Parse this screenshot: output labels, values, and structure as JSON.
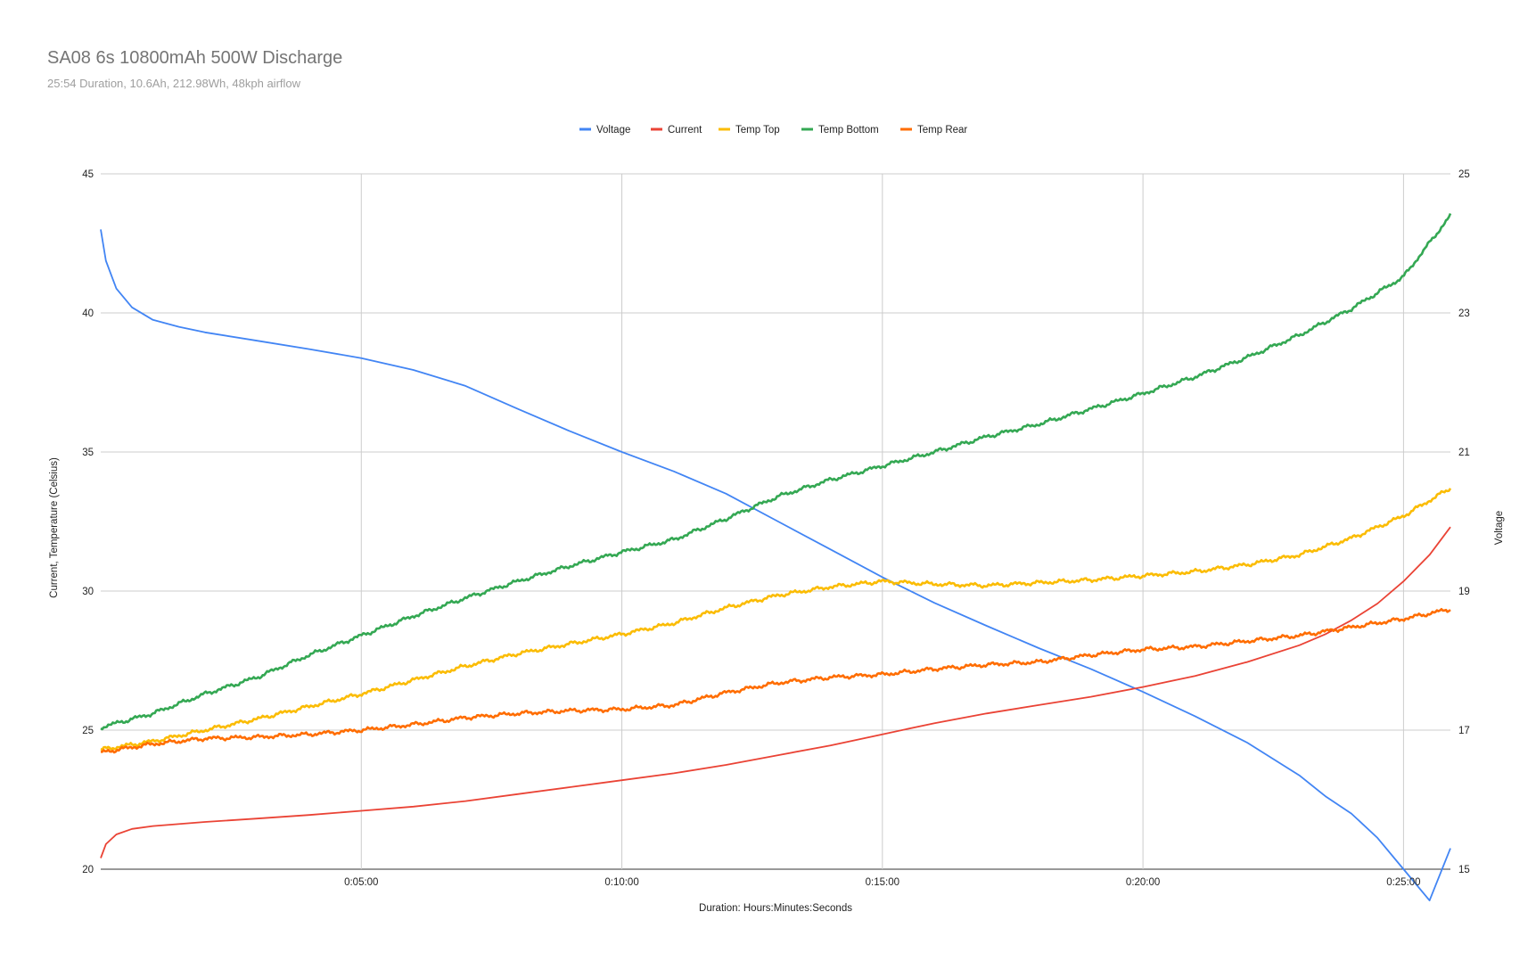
{
  "chart_data": {
    "type": "line",
    "title": "SA08 6s 10800mAh 500W Discharge",
    "subtitle": "25:54 Duration, 10.6Ah, 212.98Wh, 48kph airflow",
    "xlabel": "Duration: Hours:Minutes:Seconds",
    "ylabel_left": "Current, Temperature (Celsius)",
    "ylabel_right": "Voltage",
    "x_unit": "minutes",
    "xlim": [
      0,
      25.9
    ],
    "x_ticks": [
      {
        "value": 5,
        "label": "0:05:00"
      },
      {
        "value": 10,
        "label": "0:10:00"
      },
      {
        "value": 15,
        "label": "0:15:00"
      },
      {
        "value": 20,
        "label": "0:20:00"
      },
      {
        "value": 25,
        "label": "0:25:00"
      }
    ],
    "ylim_left": [
      20,
      45
    ],
    "y_ticks_left": [
      "20",
      "25",
      "30",
      "35",
      "40",
      "45"
    ],
    "ylim_right": [
      15,
      25
    ],
    "y_ticks_right": [
      "15",
      "17",
      "19",
      "21",
      "23",
      "25"
    ],
    "grid": true,
    "legend_position": "top-center",
    "series": [
      {
        "name": "Voltage",
        "color": "#4285f4",
        "axis": "right",
        "x": [
          0,
          0.1,
          0.3,
          0.6,
          1,
          1.5,
          2,
          3,
          4,
          5,
          6,
          7,
          8,
          9,
          10,
          11,
          12,
          13,
          14,
          15,
          16,
          17,
          18,
          19,
          20,
          21,
          22,
          23,
          23.5,
          24,
          24.5,
          25,
          25.5,
          25.9
        ],
        "y": [
          24.2,
          23.75,
          23.35,
          23.08,
          22.9,
          22.8,
          22.72,
          22.6,
          22.48,
          22.35,
          22.18,
          21.95,
          21.62,
          21.3,
          21.0,
          20.72,
          20.4,
          20.0,
          19.6,
          19.2,
          18.83,
          18.5,
          18.18,
          17.88,
          17.55,
          17.2,
          16.82,
          16.35,
          16.05,
          15.8,
          15.45,
          15.0,
          14.55,
          15.3
        ]
      },
      {
        "name": "Current",
        "color": "#ea4335",
        "axis": "left",
        "x": [
          0,
          0.1,
          0.3,
          0.6,
          1,
          2,
          3,
          4,
          5,
          6,
          7,
          8,
          9,
          10,
          11,
          12,
          13,
          14,
          15,
          16,
          17,
          18,
          19,
          20,
          21,
          22,
          23,
          23.5,
          24,
          24.5,
          25,
          25.5,
          25.9
        ],
        "y": [
          20.4,
          20.9,
          21.25,
          21.45,
          21.55,
          21.7,
          21.82,
          21.95,
          22.1,
          22.25,
          22.45,
          22.7,
          22.95,
          23.2,
          23.45,
          23.75,
          24.1,
          24.45,
          24.85,
          25.25,
          25.6,
          25.9,
          26.2,
          26.55,
          26.95,
          27.45,
          28.05,
          28.45,
          28.95,
          29.55,
          30.35,
          31.3,
          32.3
        ]
      },
      {
        "name": "Temp Top",
        "color": "#fbbc04",
        "axis": "left",
        "x": [
          0,
          1,
          2,
          3,
          4,
          5,
          6,
          7,
          8,
          9,
          10,
          11,
          12,
          13,
          14,
          15,
          16,
          17,
          18,
          19,
          20,
          21,
          22,
          23,
          24,
          25,
          25.9
        ],
        "y": [
          24.3,
          24.6,
          25.0,
          25.4,
          25.85,
          26.3,
          26.8,
          27.3,
          27.75,
          28.1,
          28.45,
          28.85,
          29.4,
          29.85,
          30.15,
          30.35,
          30.25,
          30.2,
          30.3,
          30.4,
          30.55,
          30.7,
          30.95,
          31.3,
          31.9,
          32.7,
          33.7
        ]
      },
      {
        "name": "Temp Bottom",
        "color": "#34a853",
        "axis": "left",
        "x": [
          0,
          1,
          2,
          3,
          4,
          5,
          6,
          7,
          8,
          9,
          10,
          11,
          12,
          13,
          14,
          15,
          16,
          17,
          18,
          19,
          20,
          21,
          22,
          23,
          24,
          25,
          25.9
        ],
        "y": [
          25.1,
          25.6,
          26.3,
          26.9,
          27.7,
          28.4,
          29.1,
          29.75,
          30.35,
          30.9,
          31.4,
          31.85,
          32.6,
          33.4,
          34.0,
          34.5,
          35.0,
          35.55,
          36.0,
          36.55,
          37.1,
          37.7,
          38.4,
          39.2,
          40.15,
          41.3,
          43.5
        ]
      },
      {
        "name": "Temp Rear",
        "color": "#ff6d01",
        "axis": "left",
        "x": [
          0,
          1,
          2,
          3,
          4,
          5,
          6,
          7,
          8,
          9,
          10,
          11,
          12,
          13,
          14,
          15,
          16,
          17,
          18,
          19,
          20,
          21,
          22,
          23,
          24,
          25,
          25.9
        ],
        "y": [
          24.2,
          24.5,
          24.7,
          24.75,
          24.85,
          25.0,
          25.2,
          25.45,
          25.6,
          25.7,
          25.75,
          25.9,
          26.35,
          26.7,
          26.9,
          27.0,
          27.2,
          27.35,
          27.45,
          27.7,
          27.9,
          28.0,
          28.2,
          28.4,
          28.7,
          29.0,
          29.35
        ]
      }
    ]
  }
}
